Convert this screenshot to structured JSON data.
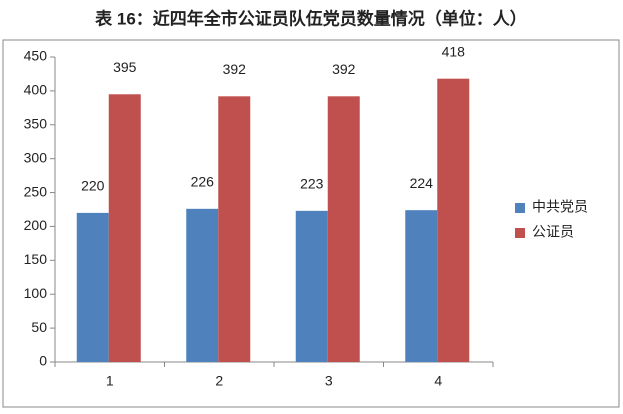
{
  "chart_data": {
    "type": "bar",
    "title": "表 16：近四年全市公证员队伍党员数量情况（单位：人）",
    "categories": [
      "1",
      "2",
      "3",
      "4"
    ],
    "series": [
      {
        "name": "中共党员",
        "color": "#4f81bd",
        "values": [
          220,
          226,
          223,
          224
        ]
      },
      {
        "name": "公证员",
        "color": "#c0504d",
        "values": [
          395,
          392,
          392,
          418
        ]
      }
    ],
    "ylim": [
      0,
      450
    ],
    "yticks": [
      0,
      50,
      100,
      150,
      200,
      250,
      300,
      350,
      400,
      450
    ],
    "grid": false,
    "legend": "right",
    "data_labels": true
  }
}
